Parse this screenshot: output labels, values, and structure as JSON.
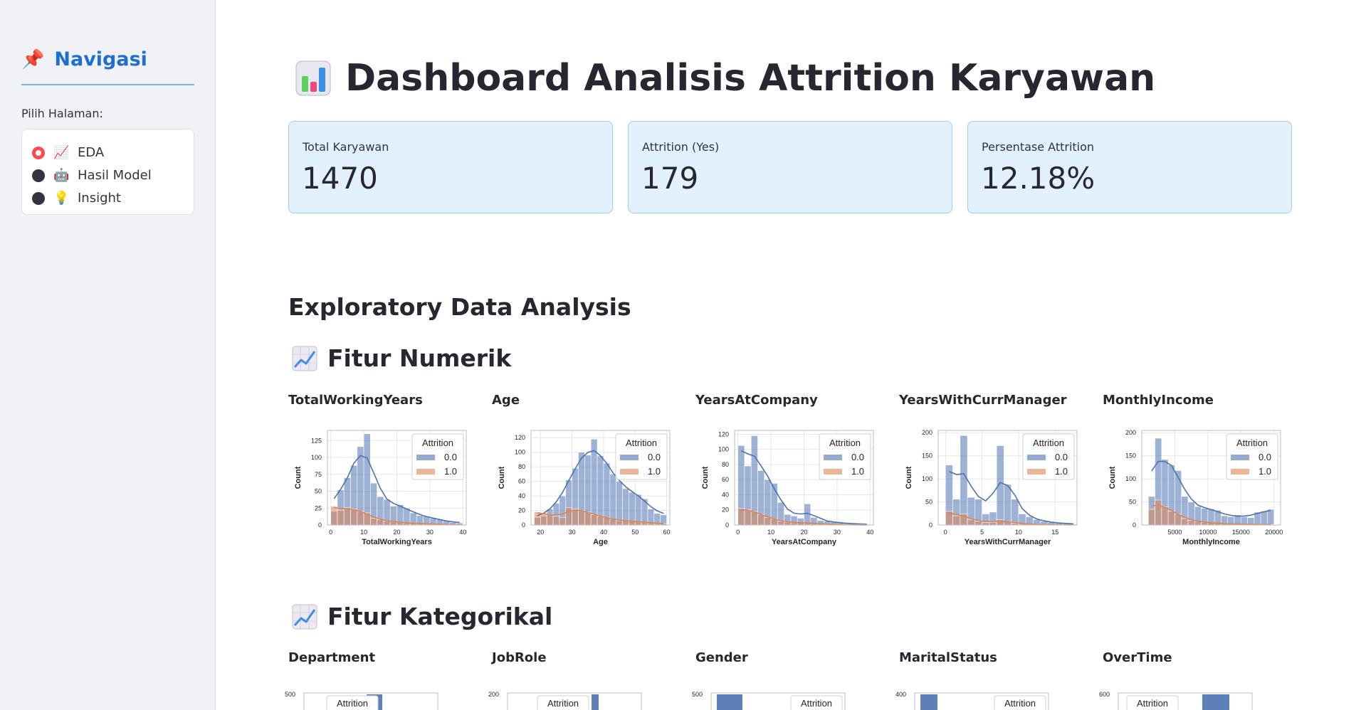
{
  "sidebar": {
    "title": "Navigasi",
    "title_icon": "pushpin-icon",
    "pick_label": "Pilih Halaman:",
    "options": [
      {
        "label": "EDA",
        "icon": "chart-increasing-icon",
        "selected": true
      },
      {
        "label": "Hasil Model",
        "icon": "robot-icon",
        "selected": false
      },
      {
        "label": "Insight",
        "icon": "lightbulb-icon",
        "selected": false
      }
    ]
  },
  "header": {
    "title": "Dashboard Analisis Attrition Karyawan",
    "icon": "bar-chart-icon"
  },
  "metrics": [
    {
      "label": "Total Karyawan",
      "value": "1470"
    },
    {
      "label": "Attrition (Yes)",
      "value": "179"
    },
    {
      "label": "Persentase Attrition",
      "value": "12.18%"
    }
  ],
  "section_title": "Exploratory Data Analysis",
  "numeric_title": "Fitur Numerik",
  "categorical_title": "Fitur Kategorikal",
  "colors": {
    "blue": "#4c72b0",
    "orange": "#dd8452",
    "accent": "#1f6fd1",
    "radio": "#ff4b4b"
  },
  "legend": {
    "title": "Attrition",
    "items": [
      "0.0",
      "1.0"
    ]
  },
  "chart_data": [
    {
      "type": "bar",
      "title": "TotalWorkingYears",
      "xlabel": "TotalWorkingYears",
      "ylabel": "Count",
      "xlim": [
        -1,
        41
      ],
      "ylim": [
        0,
        140
      ],
      "xticks": [
        0,
        10,
        20,
        30,
        40
      ],
      "yticks": [
        0,
        25,
        50,
        75,
        100,
        125
      ],
      "bins_x": [
        0,
        2,
        4,
        6,
        8,
        10,
        12,
        14,
        16,
        18,
        20,
        22,
        24,
        26,
        28,
        30,
        32,
        34,
        36,
        38
      ],
      "series": [
        {
          "name": "0.0",
          "values": [
            20,
            52,
            70,
            88,
            116,
            135,
            62,
            42,
            38,
            28,
            30,
            25,
            18,
            14,
            13,
            10,
            8,
            6,
            4,
            3
          ]
        },
        {
          "name": "1.0",
          "values": [
            28,
            22,
            26,
            24,
            20,
            18,
            10,
            8,
            6,
            5,
            4,
            3,
            3,
            2,
            2,
            2,
            1,
            1,
            0,
            0
          ]
        }
      ]
    },
    {
      "type": "bar",
      "title": "Age",
      "xlabel": "Age",
      "ylabel": "Count",
      "xlim": [
        17,
        61
      ],
      "ylim": [
        0,
        130
      ],
      "xticks": [
        20,
        30,
        40,
        50,
        60
      ],
      "yticks": [
        0,
        20,
        40,
        60,
        80,
        100,
        120
      ],
      "bins_x": [
        18,
        20,
        22,
        24,
        26,
        28,
        30,
        32,
        34,
        36,
        38,
        40,
        42,
        44,
        46,
        48,
        50,
        52,
        54,
        56,
        58
      ],
      "series": [
        {
          "name": "0.0",
          "values": [
            10,
            12,
            22,
            30,
            40,
            62,
            78,
            100,
            96,
            118,
            95,
            85,
            70,
            60,
            50,
            45,
            42,
            36,
            22,
            16,
            14
          ]
        },
        {
          "name": "1.0",
          "values": [
            18,
            16,
            14,
            12,
            10,
            24,
            22,
            20,
            18,
            14,
            12,
            10,
            8,
            6,
            6,
            5,
            5,
            4,
            3,
            2,
            2
          ]
        }
      ]
    },
    {
      "type": "bar",
      "title": "YearsAtCompany",
      "xlabel": "YearsAtCompany",
      "ylabel": "Count",
      "xlim": [
        -1,
        41
      ],
      "ylim": [
        0,
        125
      ],
      "xticks": [
        0,
        10,
        20,
        30,
        40
      ],
      "yticks": [
        0,
        20,
        40,
        60,
        80,
        100,
        120
      ],
      "bins_x": [
        0,
        2,
        4,
        6,
        8,
        10,
        12,
        14,
        16,
        18,
        20,
        22,
        24,
        26,
        28,
        30,
        32,
        34,
        36,
        38
      ],
      "series": [
        {
          "name": "0.0",
          "values": [
            105,
            78,
            118,
            72,
            60,
            55,
            30,
            14,
            12,
            9,
            28,
            10,
            6,
            5,
            4,
            3,
            2,
            2,
            1,
            1
          ]
        },
        {
          "name": "1.0",
          "values": [
            22,
            20,
            18,
            14,
            10,
            8,
            5,
            4,
            3,
            3,
            3,
            2,
            2,
            1,
            1,
            1,
            0,
            0,
            0,
            0
          ]
        }
      ]
    },
    {
      "type": "bar",
      "title": "YearsWithCurrManager",
      "xlabel": "YearsWithCurrManager",
      "ylabel": "Count",
      "xlim": [
        -1,
        18
      ],
      "ylim": [
        0,
        205
      ],
      "xticks": [
        0,
        5,
        10,
        15
      ],
      "yticks": [
        0,
        50,
        100,
        150,
        200
      ],
      "bins_x": [
        0,
        1,
        2,
        3,
        4,
        5,
        6,
        7,
        8,
        9,
        10,
        11,
        12,
        13,
        14,
        15,
        16,
        17
      ],
      "series": [
        {
          "name": "0.0",
          "values": [
            130,
            56,
            194,
            60,
            56,
            24,
            28,
            172,
            88,
            56,
            24,
            18,
            12,
            8,
            6,
            4,
            3,
            2
          ]
        },
        {
          "name": "1.0",
          "values": [
            30,
            20,
            24,
            12,
            8,
            5,
            6,
            12,
            8,
            4,
            3,
            2,
            1,
            1,
            1,
            1,
            0,
            0
          ]
        }
      ]
    },
    {
      "type": "bar",
      "title": "MonthlyIncome",
      "xlabel": "MonthlyIncome",
      "ylabel": "Count",
      "xlim": [
        0,
        21000
      ],
      "ylim": [
        0,
        205
      ],
      "xticks": [
        5000,
        10000,
        15000,
        20000
      ],
      "yticks": [
        0,
        50,
        100,
        150,
        200
      ],
      "bins_x": [
        1000,
        2000,
        3000,
        4000,
        5000,
        6000,
        7000,
        8000,
        9000,
        10000,
        11000,
        12000,
        13000,
        14000,
        15000,
        16000,
        17000,
        18000,
        19000
      ],
      "series": [
        {
          "name": "0.0",
          "values": [
            62,
            188,
            142,
            130,
            118,
            62,
            50,
            40,
            36,
            35,
            32,
            20,
            18,
            22,
            18,
            16,
            28,
            30,
            34
          ]
        },
        {
          "name": "1.0",
          "values": [
            34,
            54,
            40,
            30,
            24,
            14,
            10,
            8,
            6,
            5,
            4,
            3,
            2,
            2,
            2,
            1,
            2,
            1,
            1
          ]
        }
      ]
    }
  ],
  "categorical": [
    {
      "title": "Department",
      "top_tick": "500"
    },
    {
      "title": "JobRole",
      "top_tick": "200"
    },
    {
      "title": "Gender",
      "top_tick": "500"
    },
    {
      "title": "MaritalStatus",
      "top_tick": "400"
    },
    {
      "title": "OverTime",
      "top_tick": "600"
    }
  ]
}
